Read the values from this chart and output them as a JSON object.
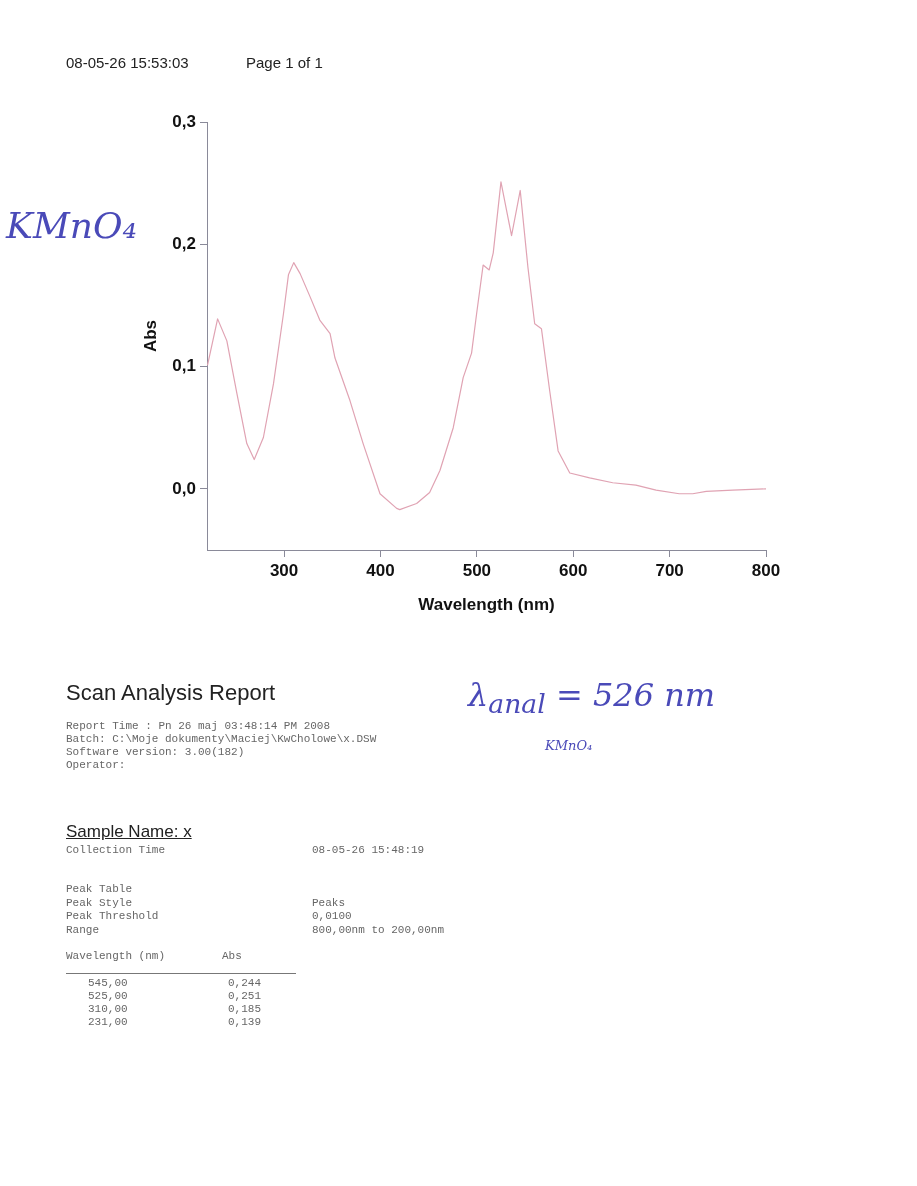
{
  "chart_data": {
    "type": "line",
    "xlabel": "Wavelength (nm)",
    "ylabel": "Abs",
    "xlim": [
      220,
      800
    ],
    "ylim": [
      -0.05,
      0.3
    ],
    "xticks": [
      300,
      400,
      500,
      600,
      700,
      800
    ],
    "yticks": [
      {
        "value": 0,
        "label": "0,0"
      },
      {
        "value": 0.1,
        "label": "0,1"
      },
      {
        "value": 0.2,
        "label": "0,2"
      },
      {
        "value": 0.3,
        "label": "0,3"
      }
    ],
    "grid": false,
    "legend": false,
    "marker": "none",
    "line_style": "solid",
    "series": [
      {
        "color": "#e0a3b3",
        "x": [
          220.5,
          231,
          240.6,
          251,
          261.3,
          269,
          278.5,
          289,
          299.3,
          304.5,
          310,
          316.6,
          327,
          337,
          347.7,
          352.8,
          368.4,
          382,
          399.5,
          416.8,
          420,
          437.5,
          451,
          461.7,
          475.5,
          485.8,
          494.5,
          499.7,
          506.5,
          512.8,
          517,
          525,
          536,
          545,
          553,
          560,
          567,
          575.6,
          584.3,
          596.4,
          617,
          641,
          665,
          686,
          710,
          724,
          738,
          765.5,
          800
        ],
        "values": [
          0.101,
          0.139,
          0.121,
          0.078,
          0.037,
          0.024,
          0.042,
          0.086,
          0.143,
          0.175,
          0.185,
          0.176,
          0.157,
          0.138,
          0.127,
          0.107,
          0.072,
          0.037,
          -0.004,
          -0.016,
          -0.017,
          -0.012,
          -0.003,
          0.015,
          0.05,
          0.091,
          0.111,
          0.143,
          0.183,
          0.179,
          0.193,
          0.251,
          0.207,
          0.244,
          0.181,
          0.135,
          0.131,
          0.08,
          0.031,
          0.013,
          0.009,
          0.005,
          0.003,
          -0.001,
          -0.004,
          -0.004,
          -0.002,
          -0.001,
          0
        ]
      }
    ],
    "annotations": [
      "08-05-26 15:53:03",
      "Page 1 of 1",
      "KMnO₄",
      "Scan Analysis Report",
      "Report Time : Pn 26 maj 03:48:14 PM 2008",
      "Batch: C:\\Moje dokumenty\\Maciej\\KwCholowe\\x.DSW",
      "Software version: 3.00(182)",
      "Operator:",
      "λ$_{anal}$ = 526 nm",
      "KMnO₄",
      "Sample Name: x",
      "Collection Time",
      "08-05-26 15:48:19",
      "Peak Table",
      "Peak Style",
      "Peaks",
      "Peak Threshold",
      "0,0100",
      "Range",
      "800,00nm to 200,00nm",
      "Wavelength (nm)",
      "Abs",
      "545,00",
      "0,244",
      "525,00",
      "0,251",
      "310,00",
      "0,185",
      "231,00",
      "0,139"
    ]
  }
}
